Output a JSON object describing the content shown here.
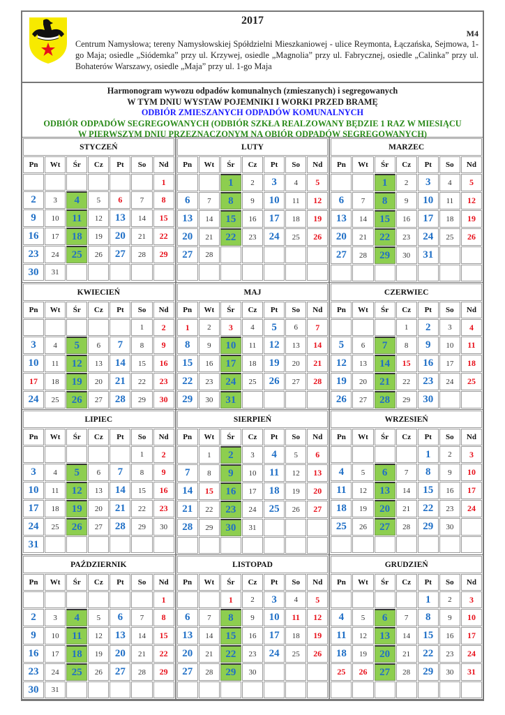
{
  "header": {
    "year": "2017",
    "code": "M4",
    "description": "Centrum Namysłowa; tereny Namysłowskiej Spółdzielni Mieszkaniowej - ulice Reymonta, Łączańska, Sejmowa, 1-go Maja; osiedle „Siódemka” przy ul. Krzywej, osiedle „Magnolia” przy ul. Fabrycznej, osiedle „Calinka” przy ul. Bohaterów Warszawy, osiedle „Maja” przy ul. 1-go Maja",
    "logo": "coat-of-arms-yellow-shield-black-eagle-red-star"
  },
  "title": {
    "line1": "Harmonogram wywozu odpadów komunalnych (zmieszanych) i segregowanych",
    "line2": "W TYM DNIU WYSTAW POJEMNIKI I WORKI PRZED BRAMĘ",
    "mixed_label": "ODBIÓR ZMIESZANYCH ODPADÓW KOMUNALNYCH",
    "segregated_label_1": "ODBIÓR ODPADÓW SEGREGOWANYCH (ODBIÓR SZKŁA REALZOWANY BĘDZIE 1 RAZ W MIESIĄCU",
    "segregated_label_2": "W PIERWSZYM DNIU PRZEZNACZONYM NA OBIÓR ODPADÓW SEGREGOWANYCH)"
  },
  "colors": {
    "mixed": "#1f6fc6",
    "segregated_cell": "#8dce4f",
    "holiday": "#e8101a",
    "mixed_label": "#1a1aff",
    "segregated_label": "#2a8a1a"
  },
  "weekdays": [
    "Pn",
    "Wt",
    "Śr",
    "Cz",
    "Pt",
    "So",
    "Nd"
  ],
  "quarters": [
    {
      "rows": 6,
      "months": [
        {
          "name": "STYCZEŃ",
          "weeks": [
            [
              null,
              null,
              null,
              null,
              null,
              null,
              1
            ],
            [
              2,
              3,
              4,
              5,
              6,
              7,
              8
            ],
            [
              9,
              10,
              11,
              12,
              13,
              14,
              15
            ],
            [
              16,
              17,
              18,
              19,
              20,
              21,
              22
            ],
            [
              23,
              24,
              25,
              26,
              27,
              28,
              29
            ],
            [
              30,
              31
            ]
          ],
          "mixed": [
            2,
            9,
            13,
            16,
            20,
            23,
            27,
            30
          ],
          "segregated": [
            4,
            11,
            18,
            25
          ],
          "red": [
            1,
            6,
            8,
            15,
            22,
            29
          ]
        },
        {
          "name": "LUTY",
          "weeks": [
            [
              null,
              null,
              1,
              2,
              3,
              4,
              5
            ],
            [
              6,
              7,
              8,
              9,
              10,
              11,
              12
            ],
            [
              13,
              14,
              15,
              16,
              17,
              18,
              19
            ],
            [
              20,
              21,
              22,
              23,
              24,
              25,
              26
            ],
            [
              27,
              28
            ]
          ],
          "mixed": [
            3,
            6,
            10,
            13,
            17,
            20,
            24,
            27
          ],
          "segregated": [
            1,
            8,
            15,
            22
          ],
          "red": [
            5,
            12,
            19,
            26
          ]
        },
        {
          "name": "MARZEC",
          "weeks": [
            [
              null,
              null,
              1,
              2,
              3,
              4,
              5
            ],
            [
              6,
              7,
              8,
              9,
              10,
              11,
              12
            ],
            [
              13,
              14,
              15,
              16,
              17,
              18,
              19
            ],
            [
              20,
              21,
              22,
              23,
              24,
              25,
              26
            ],
            [
              27,
              28,
              29,
              30,
              31
            ]
          ],
          "mixed": [
            3,
            6,
            10,
            13,
            17,
            20,
            24,
            27,
            31
          ],
          "segregated": [
            1,
            8,
            15,
            22,
            29
          ],
          "red": [
            5,
            12,
            19,
            26
          ]
        }
      ]
    },
    {
      "rows": 5,
      "months": [
        {
          "name": "KWIECIEŃ",
          "weeks": [
            [
              null,
              null,
              null,
              null,
              null,
              1,
              2
            ],
            [
              3,
              4,
              5,
              6,
              7,
              8,
              9
            ],
            [
              10,
              11,
              12,
              13,
              14,
              15,
              16
            ],
            [
              17,
              18,
              19,
              20,
              21,
              22,
              23
            ],
            [
              24,
              25,
              26,
              27,
              28,
              29,
              30
            ]
          ],
          "mixed": [
            3,
            7,
            10,
            14,
            21,
            24,
            28
          ],
          "segregated": [
            5,
            12,
            19,
            26
          ],
          "red": [
            2,
            9,
            16,
            17,
            23,
            30
          ]
        },
        {
          "name": "MAJ",
          "weeks": [
            [
              1,
              2,
              3,
              4,
              5,
              6,
              7
            ],
            [
              8,
              9,
              10,
              11,
              12,
              13,
              14
            ],
            [
              15,
              16,
              17,
              18,
              19,
              20,
              21
            ],
            [
              22,
              23,
              24,
              25,
              26,
              27,
              28
            ],
            [
              29,
              30,
              31
            ]
          ],
          "mixed": [
            5,
            8,
            12,
            15,
            19,
            22,
            26,
            29
          ],
          "segregated": [
            10,
            17,
            24,
            31
          ],
          "red": [
            1,
            3,
            7,
            14,
            21,
            28
          ]
        },
        {
          "name": "CZERWIEC",
          "weeks": [
            [
              null,
              null,
              null,
              1,
              2,
              3,
              4
            ],
            [
              5,
              6,
              7,
              8,
              9,
              10,
              11
            ],
            [
              12,
              13,
              14,
              15,
              16,
              17,
              18
            ],
            [
              19,
              20,
              21,
              22,
              23,
              24,
              25
            ],
            [
              26,
              27,
              28,
              29,
              30
            ]
          ],
          "mixed": [
            2,
            5,
            9,
            12,
            16,
            19,
            23,
            26,
            30
          ],
          "segregated": [
            7,
            14,
            21,
            28
          ],
          "red": [
            4,
            11,
            15,
            18,
            25
          ]
        }
      ]
    },
    {
      "rows": 6,
      "months": [
        {
          "name": "LIPIEC",
          "weeks": [
            [
              null,
              null,
              null,
              null,
              null,
              1,
              2
            ],
            [
              3,
              4,
              5,
              6,
              7,
              8,
              9
            ],
            [
              10,
              11,
              12,
              13,
              14,
              15,
              16
            ],
            [
              17,
              18,
              19,
              20,
              21,
              22,
              23
            ],
            [
              24,
              25,
              26,
              27,
              28,
              29,
              30
            ],
            [
              31
            ]
          ],
          "mixed": [
            3,
            7,
            10,
            14,
            17,
            21,
            24,
            28,
            31
          ],
          "segregated": [
            5,
            12,
            19,
            26
          ],
          "red": [
            2,
            9,
            16,
            23
          ]
        },
        {
          "name": "SIERPIEŃ",
          "weeks": [
            [
              null,
              1,
              2,
              3,
              4,
              5,
              6
            ],
            [
              7,
              8,
              9,
              10,
              11,
              12,
              13
            ],
            [
              14,
              15,
              16,
              17,
              18,
              19,
              20
            ],
            [
              21,
              22,
              23,
              24,
              25,
              26,
              27
            ],
            [
              28,
              29,
              30,
              31
            ]
          ],
          "mixed": [
            4,
            7,
            11,
            14,
            18,
            21,
            25,
            28
          ],
          "segregated": [
            2,
            9,
            16,
            23,
            30
          ],
          "red": [
            6,
            13,
            15,
            20,
            27
          ]
        },
        {
          "name": "WRZESIEŃ",
          "weeks": [
            [
              null,
              null,
              null,
              null,
              1,
              2,
              3
            ],
            [
              4,
              5,
              6,
              7,
              8,
              9,
              10
            ],
            [
              11,
              12,
              13,
              14,
              15,
              16,
              17
            ],
            [
              18,
              19,
              20,
              21,
              22,
              23,
              24
            ],
            [
              25,
              26,
              27,
              28,
              29,
              30
            ]
          ],
          "mixed": [
            1,
            4,
            8,
            11,
            15,
            18,
            22,
            25,
            29
          ],
          "segregated": [
            6,
            13,
            20,
            27
          ],
          "red": [
            3,
            10,
            17,
            24
          ]
        }
      ]
    },
    {
      "rows": 6,
      "months": [
        {
          "name": "PAŹDZIERNIK",
          "weeks": [
            [
              null,
              null,
              null,
              null,
              null,
              null,
              1
            ],
            [
              2,
              3,
              4,
              5,
              6,
              7,
              8
            ],
            [
              9,
              10,
              11,
              12,
              13,
              14,
              15
            ],
            [
              16,
              17,
              18,
              19,
              20,
              21,
              22
            ],
            [
              23,
              24,
              25,
              26,
              27,
              28,
              29
            ],
            [
              30,
              31
            ]
          ],
          "mixed": [
            2,
            6,
            9,
            13,
            16,
            20,
            23,
            27,
            30
          ],
          "segregated": [
            4,
            11,
            18,
            25
          ],
          "red": [
            1,
            8,
            15,
            22,
            29
          ]
        },
        {
          "name": "LISTOPAD",
          "weeks": [
            [
              null,
              null,
              1,
              2,
              3,
              4,
              5
            ],
            [
              6,
              7,
              8,
              9,
              10,
              11,
              12
            ],
            [
              13,
              14,
              15,
              16,
              17,
              18,
              19
            ],
            [
              20,
              21,
              22,
              23,
              24,
              25,
              26
            ],
            [
              27,
              28,
              29,
              30
            ]
          ],
          "mixed": [
            3,
            6,
            10,
            13,
            17,
            20,
            24,
            27
          ],
          "segregated": [
            8,
            15,
            22,
            29
          ],
          "red": [
            1,
            5,
            11,
            12,
            19,
            26
          ]
        },
        {
          "name": "GRUDZIEŃ",
          "weeks": [
            [
              null,
              null,
              null,
              null,
              1,
              2,
              3
            ],
            [
              4,
              5,
              6,
              7,
              8,
              9,
              10
            ],
            [
              11,
              12,
              13,
              14,
              15,
              16,
              17
            ],
            [
              18,
              19,
              20,
              21,
              22,
              23,
              24
            ],
            [
              25,
              26,
              27,
              28,
              29,
              30,
              31
            ]
          ],
          "mixed": [
            1,
            4,
            8,
            11,
            15,
            18,
            22,
            29
          ],
          "segregated": [
            6,
            13,
            20,
            27
          ],
          "red": [
            3,
            10,
            17,
            24,
            25,
            26,
            31
          ]
        }
      ]
    }
  ]
}
